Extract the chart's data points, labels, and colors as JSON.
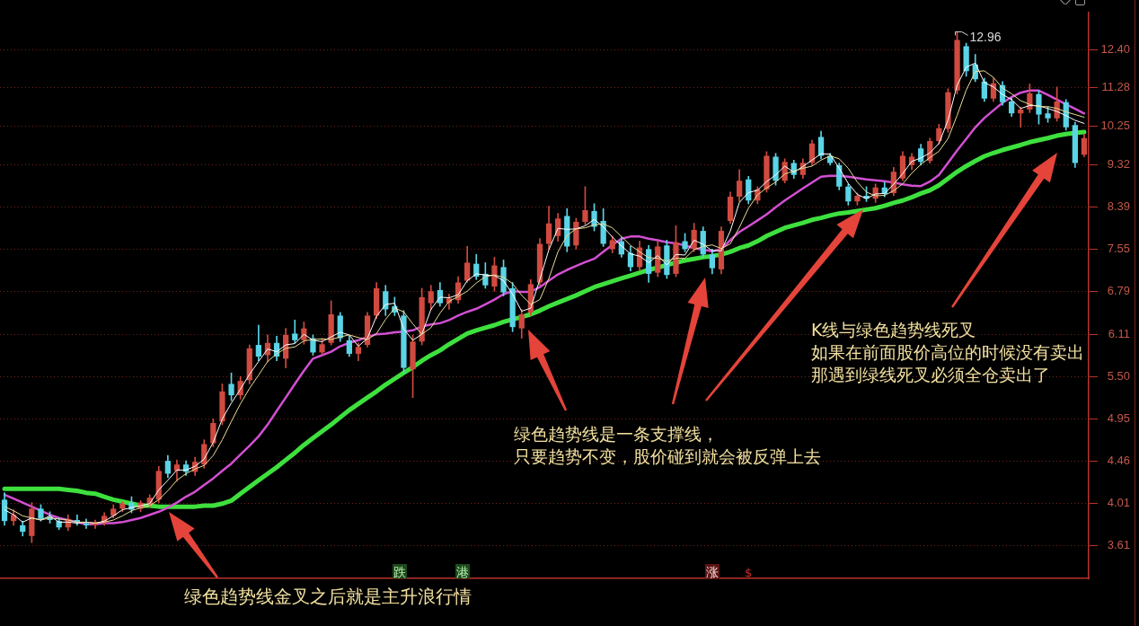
{
  "chart_data": {
    "type": "candlestick",
    "categories": [
      null,
      null,
      null,
      null,
      null,
      null,
      null,
      null,
      null,
      null,
      null,
      null,
      null,
      null,
      null,
      null,
      null,
      null,
      null,
      null,
      null,
      null,
      null,
      null,
      null,
      null,
      null,
      null,
      null,
      null,
      null,
      null,
      null,
      null,
      null,
      null,
      null,
      null,
      null,
      null,
      null,
      null,
      null,
      null,
      null,
      null,
      null,
      null,
      null,
      null,
      null,
      null,
      null,
      null,
      null,
      null,
      null,
      null,
      null,
      null,
      null,
      null,
      null,
      null,
      null,
      null,
      null,
      null,
      null,
      null,
      null,
      null,
      null,
      null,
      null,
      null,
      null,
      null,
      null,
      null,
      null,
      null,
      null,
      null,
      null,
      null,
      null,
      null,
      null,
      null,
      null,
      null,
      null,
      null,
      null,
      null,
      null,
      null,
      null,
      null,
      null,
      null,
      null,
      null,
      null,
      null,
      null,
      null,
      null,
      null,
      null,
      null,
      null,
      null,
      null,
      null,
      null,
      null,
      null,
      null
    ],
    "ohlc": [
      [
        4.05,
        4.12,
        3.8,
        3.84
      ],
      [
        3.84,
        3.95,
        3.8,
        3.9
      ],
      [
        3.8,
        3.84,
        3.7,
        3.74
      ],
      [
        3.7,
        4.02,
        3.64,
        3.96
      ],
      [
        3.96,
        4.0,
        3.84,
        3.86
      ],
      [
        3.88,
        3.93,
        3.82,
        3.85
      ],
      [
        3.84,
        3.87,
        3.76,
        3.78
      ],
      [
        3.78,
        3.9,
        3.75,
        3.86
      ],
      [
        3.85,
        3.9,
        3.8,
        3.83
      ],
      [
        3.82,
        3.86,
        3.77,
        3.8
      ],
      [
        3.8,
        3.85,
        3.77,
        3.83
      ],
      [
        3.82,
        3.92,
        3.8,
        3.89
      ],
      [
        3.89,
        4.0,
        3.87,
        3.96
      ],
      [
        3.96,
        4.03,
        3.93,
        4.01
      ],
      [
        4.02,
        4.08,
        3.92,
        3.95
      ],
      [
        3.96,
        4.04,
        3.93,
        4.02
      ],
      [
        4.0,
        4.1,
        3.97,
        4.07
      ],
      [
        4.05,
        4.4,
        4.02,
        4.35
      ],
      [
        4.46,
        4.52,
        4.28,
        4.32
      ],
      [
        4.35,
        4.47,
        4.24,
        4.42
      ],
      [
        4.42,
        4.46,
        4.3,
        4.34
      ],
      [
        4.34,
        4.5,
        4.3,
        4.45
      ],
      [
        4.42,
        4.7,
        4.38,
        4.65
      ],
      [
        4.66,
        4.95,
        4.62,
        4.9
      ],
      [
        4.92,
        5.4,
        4.88,
        5.3
      ],
      [
        5.4,
        5.55,
        5.18,
        5.25
      ],
      [
        5.25,
        5.5,
        5.2,
        5.44
      ],
      [
        5.45,
        5.95,
        5.4,
        5.9
      ],
      [
        5.95,
        6.25,
        5.72,
        5.78
      ],
      [
        5.8,
        6.1,
        5.7,
        5.98
      ],
      [
        5.98,
        6.08,
        5.72,
        5.78
      ],
      [
        5.75,
        6.2,
        5.62,
        6.1
      ],
      [
        6.12,
        6.33,
        5.98,
        6.02
      ],
      [
        6.02,
        6.3,
        5.96,
        6.2
      ],
      [
        6.05,
        6.1,
        5.8,
        5.84
      ],
      [
        5.84,
        6.05,
        5.8,
        5.96
      ],
      [
        5.98,
        6.64,
        5.95,
        6.42
      ],
      [
        6.4,
        6.45,
        6.0,
        6.05
      ],
      [
        6.02,
        6.08,
        5.78,
        5.82
      ],
      [
        5.82,
        5.98,
        5.72,
        5.92
      ],
      [
        5.95,
        6.45,
        5.92,
        6.4
      ],
      [
        6.4,
        6.95,
        6.35,
        6.85
      ],
      [
        6.8,
        6.9,
        6.4,
        6.5
      ],
      [
        6.55,
        6.7,
        6.4,
        6.45
      ],
      [
        6.4,
        6.48,
        5.55,
        5.62
      ],
      [
        5.6,
        6.1,
        5.22,
        6.0
      ],
      [
        6.0,
        6.85,
        5.95,
        6.7
      ],
      [
        6.6,
        6.9,
        6.5,
        6.8
      ],
      [
        6.82,
        6.95,
        6.55,
        6.6
      ],
      [
        6.6,
        6.75,
        6.5,
        6.68
      ],
      [
        6.65,
        7.05,
        6.6,
        6.95
      ],
      [
        6.98,
        7.6,
        6.95,
        7.3
      ],
      [
        7.28,
        7.45,
        7.0,
        7.05
      ],
      [
        7.1,
        7.3,
        6.85,
        6.9
      ],
      [
        6.88,
        7.4,
        6.8,
        7.25
      ],
      [
        7.22,
        7.35,
        6.72,
        6.78
      ],
      [
        6.85,
        6.95,
        6.15,
        6.22
      ],
      [
        6.2,
        6.5,
        6.05,
        6.42
      ],
      [
        6.45,
        7.0,
        6.4,
        6.92
      ],
      [
        6.95,
        7.75,
        6.9,
        7.65
      ],
      [
        7.65,
        8.4,
        7.55,
        8.05
      ],
      [
        7.8,
        8.25,
        7.7,
        8.15
      ],
      [
        8.2,
        8.35,
        7.5,
        7.6
      ],
      [
        7.62,
        8.15,
        7.55,
        8.08
      ],
      [
        8.08,
        8.82,
        8.02,
        8.32
      ],
      [
        8.3,
        8.45,
        7.9,
        7.98
      ],
      [
        8.1,
        8.35,
        7.6,
        7.65
      ],
      [
        7.55,
        7.8,
        7.48,
        7.72
      ],
      [
        7.7,
        7.78,
        7.4,
        7.45
      ],
      [
        7.48,
        7.6,
        7.15,
        7.22
      ],
      [
        7.22,
        7.7,
        7.15,
        7.58
      ],
      [
        7.55,
        7.62,
        6.95,
        7.1
      ],
      [
        7.12,
        7.7,
        7.05,
        7.6
      ],
      [
        7.62,
        7.72,
        7.02,
        7.08
      ],
      [
        7.1,
        8.0,
        7.05,
        7.68
      ],
      [
        7.7,
        7.85,
        7.5,
        7.55
      ],
      [
        7.55,
        8.05,
        7.5,
        7.92
      ],
      [
        7.9,
        7.98,
        7.4,
        7.45
      ],
      [
        7.45,
        7.55,
        7.1,
        7.2
      ],
      [
        7.18,
        7.98,
        7.1,
        7.9
      ],
      [
        8.1,
        8.7,
        8.05,
        8.6
      ],
      [
        8.6,
        9.2,
        8.5,
        8.95
      ],
      [
        8.98,
        9.05,
        8.45,
        8.52
      ],
      [
        8.52,
        8.82,
        8.45,
        8.76
      ],
      [
        8.76,
        9.62,
        8.7,
        9.52
      ],
      [
        9.5,
        9.58,
        8.85,
        8.95
      ],
      [
        8.95,
        9.45,
        8.9,
        9.38
      ],
      [
        9.35,
        9.42,
        9.0,
        9.08
      ],
      [
        9.08,
        9.45,
        9.0,
        9.36
      ],
      [
        9.36,
        9.9,
        9.3,
        9.82
      ],
      [
        9.98,
        10.12,
        9.45,
        9.52
      ],
      [
        9.52,
        9.58,
        9.3,
        9.35
      ],
      [
        9.3,
        9.35,
        8.75,
        8.82
      ],
      [
        8.82,
        8.88,
        8.42,
        8.5
      ],
      [
        8.5,
        8.68,
        8.42,
        8.62
      ],
      [
        8.62,
        8.82,
        8.5,
        8.56
      ],
      [
        8.56,
        8.88,
        8.48,
        8.8
      ],
      [
        8.8,
        8.92,
        8.6,
        8.66
      ],
      [
        8.68,
        9.25,
        8.62,
        9.15
      ],
      [
        9.0,
        9.62,
        8.95,
        9.52
      ],
      [
        9.3,
        9.58,
        9.2,
        9.5
      ],
      [
        9.7,
        9.8,
        9.3,
        9.38
      ],
      [
        9.4,
        9.95,
        9.35,
        9.88
      ],
      [
        9.88,
        10.3,
        9.8,
        10.2
      ],
      [
        10.18,
        11.25,
        10.1,
        11.15
      ],
      [
        11.2,
        12.96,
        11.1,
        12.7
      ],
      [
        12.5,
        12.6,
        11.6,
        11.75
      ],
      [
        11.95,
        12.25,
        11.45,
        11.52
      ],
      [
        11.45,
        11.55,
        10.9,
        10.98
      ],
      [
        10.98,
        11.55,
        10.9,
        11.4
      ],
      [
        11.35,
        11.45,
        10.8,
        10.88
      ],
      [
        10.9,
        11.0,
        10.5,
        10.58
      ],
      [
        10.58,
        10.75,
        10.22,
        10.68
      ],
      [
        10.68,
        11.38,
        10.6,
        11.12
      ],
      [
        11.1,
        11.2,
        10.3,
        10.55
      ],
      [
        10.58,
        10.75,
        10.35,
        10.45
      ],
      [
        10.45,
        11.3,
        10.38,
        10.9
      ],
      [
        10.88,
        10.95,
        10.15,
        10.22
      ],
      [
        10.28,
        10.35,
        9.25,
        9.35
      ],
      [
        9.55,
        10.05,
        9.5,
        9.95
      ]
    ],
    "colors": [
      "#5ad4e6",
      "#d04a40",
      "#5ad4e6",
      "#d04a40",
      "#5ad4e6",
      "#5ad4e6",
      "#5ad4e6",
      "#d04a40",
      "#5ad4e6",
      "#5ad4e6",
      "#d04a40",
      "#d04a40",
      "#d04a40",
      "#d04a40",
      "#5ad4e6",
      "#d04a40",
      "#d04a40",
      "#d04a40",
      "#5ad4e6",
      "#d04a40",
      "#5ad4e6",
      "#d04a40",
      "#d04a40",
      "#d04a40",
      "#d04a40",
      "#5ad4e6",
      "#d04a40",
      "#d04a40",
      "#5ad4e6",
      "#d04a40",
      "#5ad4e6",
      "#d04a40",
      "#5ad4e6",
      "#d04a40",
      "#5ad4e6",
      "#d04a40",
      "#d04a40",
      "#5ad4e6",
      "#5ad4e6",
      "#d04a40",
      "#d04a40",
      "#d04a40",
      "#5ad4e6",
      "#5ad4e6",
      "#5ad4e6",
      "#d04a40",
      "#d04a40",
      "#d04a40",
      "#5ad4e6",
      "#d04a40",
      "#d04a40",
      "#d04a40",
      "#5ad4e6",
      "#5ad4e6",
      "#d04a40",
      "#5ad4e6",
      "#5ad4e6",
      "#d04a40",
      "#d04a40",
      "#d04a40",
      "#d04a40",
      "#d04a40",
      "#5ad4e6",
      "#d04a40",
      "#d04a40",
      "#5ad4e6",
      "#5ad4e6",
      "#d04a40",
      "#5ad4e6",
      "#5ad4e6",
      "#d04a40",
      "#5ad4e6",
      "#d04a40",
      "#5ad4e6",
      "#d04a40",
      "#5ad4e6",
      "#d04a40",
      "#5ad4e6",
      "#5ad4e6",
      "#d04a40",
      "#d04a40",
      "#d04a40",
      "#5ad4e6",
      "#d04a40",
      "#d04a40",
      "#5ad4e6",
      "#d04a40",
      "#5ad4e6",
      "#d04a40",
      "#d04a40",
      "#5ad4e6",
      "#5ad4e6",
      "#5ad4e6",
      "#5ad4e6",
      "#d04a40",
      "#5ad4e6",
      "#d04a40",
      "#5ad4e6",
      "#d04a40",
      "#d04a40",
      "#d04a40",
      "#5ad4e6",
      "#d04a40",
      "#d04a40",
      "#d04a40",
      "#d04a40",
      "#5ad4e6",
      "#5ad4e6",
      "#5ad4e6",
      "#d04a40",
      "#5ad4e6",
      "#5ad4e6",
      "#d04a40",
      "#d04a40",
      "#5ad4e6",
      "#5ad4e6",
      "#d04a40",
      "#5ad4e6",
      "#5ad4e6",
      "#d04a40"
    ],
    "series": [
      {
        "type": "line",
        "color": "#ffffff",
        "values": [
          3.95,
          3.9,
          3.83,
          3.87,
          3.85,
          3.89,
          3.83,
          3.83,
          3.82,
          3.83,
          3.82,
          3.84,
          3.89,
          3.95,
          3.97,
          3.99,
          4.01,
          4.15,
          4.25,
          4.36,
          4.36,
          4.4,
          4.48,
          4.67,
          4.95,
          5.15,
          5.33,
          5.53,
          5.71,
          5.89,
          5.85,
          5.95,
          5.97,
          6.11,
          6.02,
          6.0,
          6.07,
          6.14,
          6.1,
          5.93,
          6.05,
          6.39,
          6.58,
          6.6,
          6.19,
          6.02,
          6.11,
          6.5,
          6.7,
          6.69,
          6.74,
          6.98,
          7.1,
          7.08,
          7.07,
          6.98,
          6.75,
          6.47,
          6.52,
          7.0,
          7.54,
          7.95,
          7.93,
          7.94,
          8.0,
          8.13,
          7.98,
          7.78,
          7.61,
          7.46,
          7.42,
          7.3,
          7.43,
          7.26,
          7.45,
          7.44,
          7.72,
          7.64,
          7.52,
          7.52,
          7.9,
          8.48,
          8.69,
          8.74,
          8.93,
          9.08,
          9.28,
          9.14,
          9.27,
          9.42,
          9.57,
          9.56,
          9.23,
          8.89,
          8.65,
          8.56,
          8.66,
          8.67,
          8.87,
          9.11,
          9.39,
          9.47,
          9.59,
          9.82,
          10.41,
          11.35,
          11.87,
          11.99,
          11.42,
          11.3,
          11.09,
          10.95,
          10.71,
          10.79,
          10.78,
          10.71,
          10.63,
          10.52,
          10.4,
          10.32
        ]
      },
      {
        "type": "line",
        "color": "#e8dc96",
        "values": [
          3.98,
          3.94,
          3.89,
          3.87,
          3.85,
          3.87,
          3.86,
          3.85,
          3.83,
          3.83,
          3.82,
          3.83,
          3.85,
          3.89,
          3.94,
          3.97,
          3.99,
          4.05,
          4.14,
          4.25,
          4.32,
          4.37,
          4.41,
          4.52,
          4.7,
          4.92,
          5.14,
          5.34,
          5.52,
          5.71,
          5.82,
          5.9,
          5.92,
          6.01,
          6.03,
          6.04,
          6.03,
          6.07,
          6.1,
          6.06,
          6.03,
          6.12,
          6.34,
          6.52,
          6.46,
          6.27,
          6.11,
          6.21,
          6.44,
          6.63,
          6.71,
          6.8,
          6.94,
          7.05,
          7.08,
          7.04,
          6.93,
          6.73,
          6.58,
          6.66,
          7.02,
          7.5,
          7.81,
          7.94,
          7.96,
          8.02,
          8.04,
          7.96,
          7.79,
          7.62,
          7.5,
          7.39,
          7.38,
          7.33,
          7.38,
          7.38,
          7.54,
          7.6,
          7.63,
          7.56,
          7.65,
          7.97,
          8.36,
          8.64,
          8.79,
          8.92,
          9.1,
          9.17,
          9.23,
          9.28,
          9.42,
          9.52,
          9.45,
          9.23,
          8.92,
          8.7,
          8.62,
          8.63,
          8.73,
          8.88,
          9.12,
          9.32,
          9.48,
          9.63,
          9.94,
          10.53,
          11.21,
          11.74,
          11.76,
          11.57,
          11.27,
          11.11,
          10.92,
          10.82,
          10.76,
          10.76,
          10.71,
          10.62,
          10.55,
          10.48
        ]
      },
      {
        "type": "line",
        "color": "#d24fd2",
        "values": [
          4.1,
          4.06,
          4.02,
          3.98,
          3.94,
          3.9,
          3.87,
          3.85,
          3.83,
          3.81,
          3.81,
          3.82,
          3.82,
          3.83,
          3.85,
          3.87,
          3.9,
          3.93,
          3.97,
          4.02,
          4.08,
          4.13,
          4.2,
          4.27,
          4.35,
          4.43,
          4.53,
          4.63,
          4.74,
          4.88,
          5.05,
          5.22,
          5.4,
          5.58,
          5.75,
          5.8,
          5.85,
          5.93,
          5.98,
          6.02,
          6.07,
          6.11,
          6.12,
          6.14,
          6.15,
          6.17,
          6.23,
          6.26,
          6.28,
          6.33,
          6.4,
          6.46,
          6.51,
          6.58,
          6.66,
          6.75,
          6.8,
          6.79,
          6.79,
          6.87,
          6.98,
          7.09,
          7.17,
          7.24,
          7.31,
          7.37,
          7.5,
          7.63,
          7.75,
          7.79,
          7.79,
          7.75,
          7.72,
          7.68,
          7.66,
          7.62,
          7.57,
          7.54,
          7.51,
          7.55,
          7.72,
          7.88,
          7.99,
          8.11,
          8.23,
          8.38,
          8.52,
          8.65,
          8.78,
          8.91,
          9.04,
          9.06,
          9.06,
          9.04,
          9.01,
          8.98,
          8.96,
          8.94,
          8.91,
          8.87,
          8.84,
          8.83,
          8.93,
          9.08,
          9.36,
          9.65,
          9.93,
          10.22,
          10.46,
          10.66,
          10.86,
          11.02,
          11.14,
          11.2,
          11.2,
          11.08,
          10.95,
          10.82,
          10.7,
          10.58
        ]
      },
      {
        "type": "line",
        "color": "#3ee03e",
        "values": [
          4.16,
          4.16,
          4.16,
          4.16,
          4.16,
          4.16,
          4.16,
          4.15,
          4.14,
          4.12,
          4.11,
          4.08,
          4.05,
          4.03,
          4.01,
          3.99,
          3.99,
          3.98,
          3.98,
          3.98,
          3.98,
          3.98,
          3.99,
          3.99,
          4.01,
          4.04,
          4.11,
          4.18,
          4.25,
          4.32,
          4.39,
          4.47,
          4.55,
          4.64,
          4.72,
          4.8,
          4.88,
          4.97,
          5.06,
          5.14,
          5.22,
          5.3,
          5.39,
          5.47,
          5.55,
          5.63,
          5.72,
          5.8,
          5.87,
          5.96,
          6.04,
          6.12,
          6.17,
          6.21,
          6.25,
          6.3,
          6.34,
          6.38,
          6.42,
          6.48,
          6.55,
          6.61,
          6.67,
          6.73,
          6.8,
          6.87,
          6.92,
          6.97,
          7.02,
          7.07,
          7.12,
          7.17,
          7.21,
          7.26,
          7.3,
          7.34,
          7.37,
          7.4,
          7.42,
          7.45,
          7.5,
          7.57,
          7.62,
          7.7,
          7.8,
          7.88,
          7.96,
          8.01,
          8.06,
          8.12,
          8.16,
          8.21,
          8.25,
          8.27,
          8.3,
          8.33,
          8.36,
          8.41,
          8.47,
          8.52,
          8.59,
          8.67,
          8.74,
          8.85,
          9.0,
          9.15,
          9.28,
          9.4,
          9.51,
          9.59,
          9.66,
          9.72,
          9.78,
          9.85,
          9.9,
          9.95,
          10.01,
          10.05,
          10.08,
          10.1
        ]
      }
    ],
    "ylim": [
      3.33,
      13.6
    ],
    "yticks": [
      3.61,
      4.01,
      4.46,
      4.95,
      {
        "value": 5.5,
        "label": "5.50"
      },
      6.11,
      6.79,
      7.55,
      8.39,
      9.32,
      10.25,
      11.28,
      {
        "value": 12.4,
        "label": "12.40"
      }
    ],
    "log": true,
    "grid": "y",
    "tick_labels": "y",
    "marker": "none",
    "annotations": [
      "12.96",
      "绿色趋势线金叉之后就是主升浪行情",
      "绿色趋势线是一条支撑线，只要趋势不变，股价碰到就会被反弹上去",
      "K线与绿色趋势线死叉如果在前面股价高位的时候没有卖出那遇到绿线死叉必须全仓卖出了",
      "跌",
      "港",
      "涨",
      "$"
    ]
  }
}
